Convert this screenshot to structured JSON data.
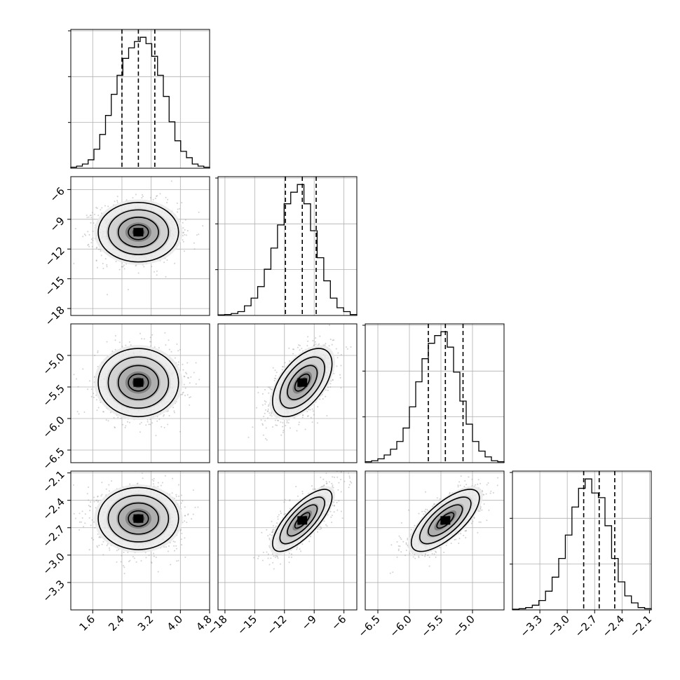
{
  "figure": {
    "type": "corner-plot",
    "n_params": 4,
    "background": "#ffffff"
  },
  "chart_data": {
    "type": "corner",
    "grid": true,
    "quantile_lines": "dashed",
    "parameters": [
      {
        "index": 0,
        "ticks": [
          1.6,
          2.4,
          3.2,
          4.0,
          4.8
        ],
        "tick_labels": [
          "1.6",
          "2.4",
          "3.2",
          "4.0",
          "4.8"
        ],
        "range": [
          1.0,
          4.8
        ],
        "quantiles": [
          2.4,
          2.85,
          3.3
        ],
        "hist": [
          0.5,
          1,
          2,
          4,
          9,
          16,
          25,
          35,
          44,
          52,
          57,
          60,
          62,
          59,
          53,
          44,
          34,
          22,
          13,
          8,
          5,
          2,
          1,
          0.5
        ]
      },
      {
        "index": 1,
        "ticks": [
          -18,
          -15,
          -12,
          -9,
          -6
        ],
        "tick_labels": [
          "−18",
          "−15",
          "−12",
          "−9",
          "−6"
        ],
        "range": [
          -18.7,
          -4.7
        ],
        "quantiles": [
          -11.9,
          -10.2,
          -8.8
        ],
        "hist": [
          0.3,
          0.5,
          1,
          2,
          5,
          9,
          15,
          24,
          35,
          47,
          58,
          64,
          68,
          58,
          44,
          30,
          18,
          9,
          4,
          2,
          0.5
        ]
      },
      {
        "index": 2,
        "ticks": [
          -6.5,
          -6.0,
          -5.5,
          -5.0
        ],
        "tick_labels": [
          "−6.5",
          "−6.0",
          "−5.5",
          "−5.0"
        ],
        "range": [
          -6.7,
          -4.5
        ],
        "quantiles": [
          -5.7,
          -5.43,
          -5.15
        ],
        "hist": [
          0.5,
          1,
          2,
          4,
          7,
          11,
          18,
          29,
          42,
          54,
          62,
          66,
          68,
          60,
          47,
          32,
          20,
          11,
          6,
          3,
          1,
          0.5
        ]
      },
      {
        "index": 3,
        "ticks": [
          -3.3,
          -3.0,
          -2.7,
          -2.4,
          -2.1
        ],
        "tick_labels": [
          "−3.3",
          "−3.0",
          "−2.7",
          "−2.4",
          "−2.1"
        ],
        "range": [
          -3.6,
          -2.08
        ],
        "quantiles": [
          -2.82,
          -2.65,
          -2.48
        ],
        "hist": [
          0.3,
          0.5,
          1,
          2,
          4,
          8,
          14,
          22,
          32,
          44,
          52,
          56,
          50,
          48,
          36,
          22,
          12,
          6,
          3,
          1,
          0.5
        ]
      }
    ],
    "y_axis_ticks": [
      {
        "row": 1,
        "tick_labels": [
          "−18",
          "−15",
          "−12",
          "−9",
          "−6"
        ]
      },
      {
        "row": 2,
        "tick_labels": [
          "−6.5",
          "−6.0",
          "−5.5",
          "−5.0"
        ]
      },
      {
        "row": 3,
        "tick_labels": [
          "−3.3",
          "−3.0",
          "−2.7",
          "−2.4",
          "−2.1"
        ]
      }
    ],
    "pairs": [
      {
        "x": 0,
        "y": 1,
        "mean": [
          2.85,
          -10.3
        ],
        "sigma": [
          0.55,
          1.5
        ],
        "rho": 0.0
      },
      {
        "x": 0,
        "y": 2,
        "mean": [
          2.85,
          -5.43
        ],
        "sigma": [
          0.55,
          0.27
        ],
        "rho": 0.0
      },
      {
        "x": 1,
        "y": 2,
        "mean": [
          -10.2,
          -5.43
        ],
        "sigma": [
          1.5,
          0.27
        ],
        "rho": 0.55
      },
      {
        "x": 0,
        "y": 3,
        "mean": [
          2.85,
          -2.6
        ],
        "sigma": [
          0.55,
          0.17
        ],
        "rho": 0.0
      },
      {
        "x": 1,
        "y": 3,
        "mean": [
          -10.2,
          -2.62
        ],
        "sigma": [
          1.5,
          0.17
        ],
        "rho": 0.75
      },
      {
        "x": 2,
        "y": 3,
        "mean": [
          -5.43,
          -2.62
        ],
        "sigma": [
          0.27,
          0.17
        ],
        "rho": 0.72
      }
    ],
    "contour_levels_sigma": [
      0.5,
      1.0,
      1.5,
      2.0
    ]
  }
}
